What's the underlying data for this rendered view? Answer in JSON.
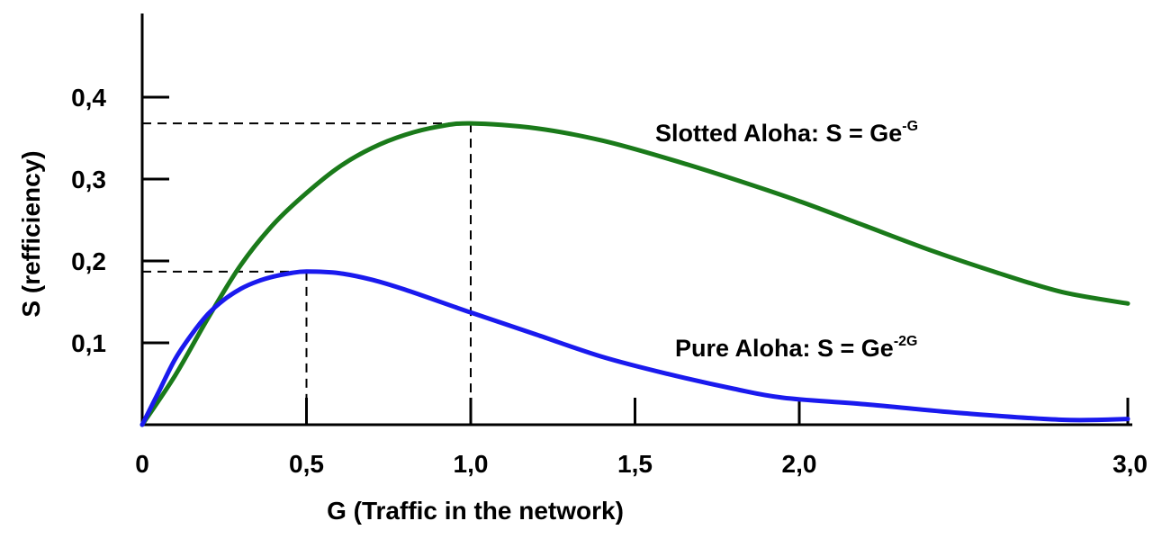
{
  "chart_data": {
    "type": "line",
    "title": "",
    "xlabel": "G (Traffic in the network)",
    "ylabel": "S (refficiency)",
    "xlim": [
      0,
      3.0
    ],
    "ylim": [
      0,
      0.4
    ],
    "x_ticks": [
      {
        "value": 0,
        "label": "0"
      },
      {
        "value": 0.5,
        "label": "0,5"
      },
      {
        "value": 1.0,
        "label": "1,0"
      },
      {
        "value": 1.5,
        "label": "1,5"
      },
      {
        "value": 2.0,
        "label": "2,0"
      },
      {
        "value": 3.0,
        "label": "3,0"
      }
    ],
    "y_ticks": [
      {
        "value": 0.1,
        "label": "0,1"
      },
      {
        "value": 0.2,
        "label": "0,2"
      },
      {
        "value": 0.3,
        "label": "0,3"
      },
      {
        "value": 0.4,
        "label": "0,4"
      }
    ],
    "series": [
      {
        "key": "slotted",
        "label_main": "Slotted Aloha: S = Ge",
        "label_sup": "-G",
        "color": "#1a7a1a",
        "x": [
          0,
          0.1,
          0.2,
          0.3,
          0.4,
          0.5,
          0.6,
          0.7,
          0.8,
          0.9,
          1.0,
          1.2,
          1.4,
          1.6,
          1.8,
          2.0,
          2.2,
          2.4,
          2.6,
          2.8,
          3.0
        ],
        "y": [
          0,
          0.06,
          0.13,
          0.195,
          0.245,
          0.283,
          0.315,
          0.338,
          0.354,
          0.364,
          0.368,
          0.362,
          0.347,
          0.325,
          0.3,
          0.273,
          0.243,
          0.213,
          0.186,
          0.162,
          0.148
        ]
      },
      {
        "key": "pure",
        "label_main": "Pure Aloha: S = Ge",
        "label_sup": "-2G",
        "color": "#1a1aee",
        "x": [
          0,
          0.05,
          0.1,
          0.15,
          0.2,
          0.25,
          0.3,
          0.35,
          0.4,
          0.45,
          0.5,
          0.6,
          0.7,
          0.8,
          1.0,
          1.2,
          1.4,
          1.6,
          1.8,
          1.95,
          2.2,
          2.5,
          2.8,
          3.0
        ],
        "y": [
          0,
          0.04,
          0.08,
          0.11,
          0.135,
          0.153,
          0.166,
          0.175,
          0.181,
          0.185,
          0.187,
          0.185,
          0.177,
          0.165,
          0.137,
          0.11,
          0.083,
          0.062,
          0.044,
          0.033,
          0.025,
          0.014,
          0.006,
          0.007
        ]
      }
    ],
    "reference_lines": [
      {
        "series": "slotted",
        "x": 1.0,
        "y": 0.368
      },
      {
        "series": "pure",
        "x": 0.5,
        "y": 0.187
      }
    ],
    "grid": false,
    "legend": "none"
  }
}
